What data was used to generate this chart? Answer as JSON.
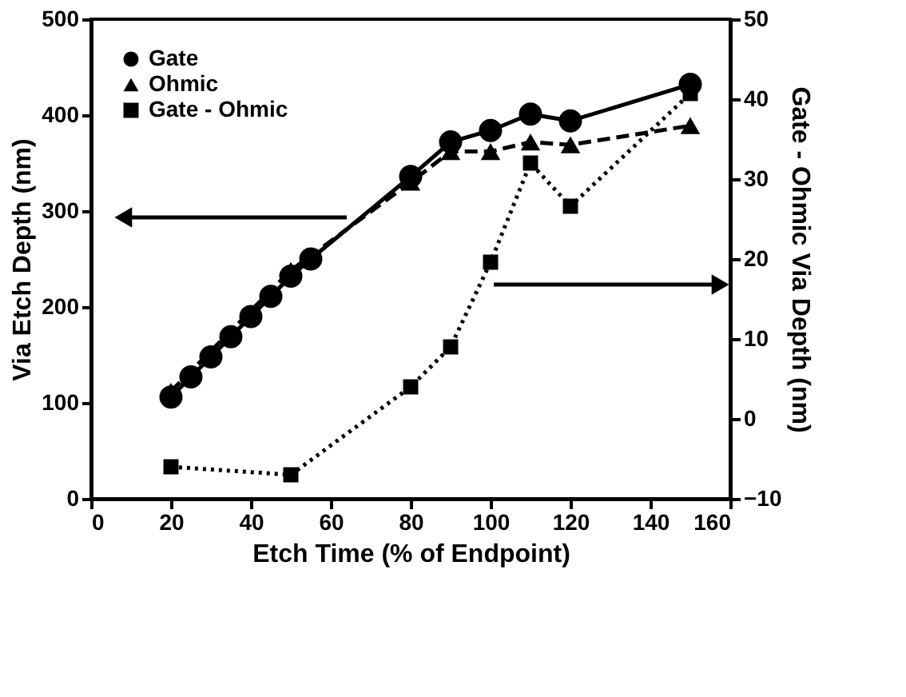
{
  "chart_data": {
    "type": "line",
    "xlabel": "Etch Time (% of Endpoint)",
    "ylabel": "Via Etch Depth (nm)",
    "y2label": "Gate - Ohmic Via Depth (nm)",
    "xlim": [
      0,
      160
    ],
    "xticks": [
      0,
      20,
      40,
      60,
      80,
      100,
      120,
      140,
      160
    ],
    "ylim": [
      0,
      500
    ],
    "yticks": [
      0,
      100,
      200,
      300,
      400,
      500
    ],
    "y2lim": [
      -10,
      50
    ],
    "y2ticks": [
      -10,
      0,
      10,
      20,
      30,
      40,
      50
    ],
    "legend": "top left",
    "grid": false,
    "series": [
      {
        "name": "Gate",
        "color": "#000000",
        "marker": "circle",
        "line_style": "solid",
        "x": [
          20,
          25,
          30,
          35,
          40,
          45,
          50,
          55,
          80,
          90,
          100,
          110,
          120,
          150
        ],
        "values": [
          106,
          127,
          148,
          169,
          190,
          211,
          232,
          250,
          336,
          372,
          384,
          401,
          394,
          432
        ]
      },
      {
        "name": "Ohmic",
        "color": "#000000",
        "marker": "triangle",
        "line_style": "dashed",
        "x": [
          20,
          50,
          80,
          90,
          100,
          110,
          120,
          150
        ],
        "values": [
          112,
          238,
          330,
          362,
          362,
          372,
          369,
          389
        ]
      },
      {
        "name": "Gate - Ohmic",
        "color": "#000000",
        "marker": "square",
        "line_style": "dotted",
        "axis": "y2",
        "x": [
          20,
          50,
          80,
          90,
          100,
          110,
          120,
          150
        ],
        "values": [
          -6,
          -7,
          4,
          9,
          19.6,
          32,
          26.6,
          40.7
        ]
      }
    ]
  }
}
